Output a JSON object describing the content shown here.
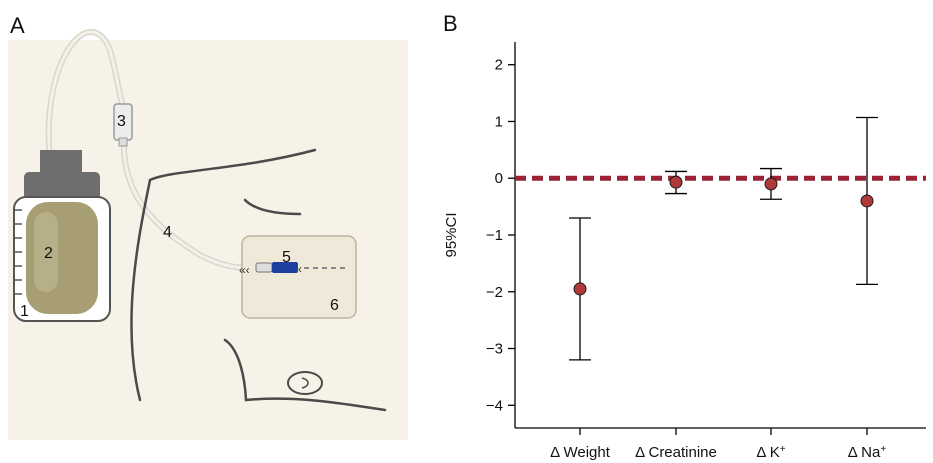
{
  "panel_a": {
    "letter": "A",
    "labels": [
      {
        "id": "1",
        "text": "1"
      },
      {
        "id": "2",
        "text": "2"
      },
      {
        "id": "3",
        "text": "3"
      },
      {
        "id": "4",
        "text": "4"
      },
      {
        "id": "5",
        "text": "5"
      },
      {
        "id": "6",
        "text": "6"
      }
    ]
  },
  "chart_data": {
    "panel_letter": "B",
    "type": "scatter",
    "subtype": "point-with-error-bars",
    "ylabel": "95%CI",
    "ylim": [
      -4.4,
      2.4
    ],
    "yticks": [
      -4,
      -3,
      -2,
      -1,
      0,
      1,
      2
    ],
    "ytick_labels": [
      "−4",
      "−3",
      "−2",
      "−1",
      "0",
      "1",
      "2"
    ],
    "categories": [
      {
        "prefix": "Δ",
        "name": "Weight",
        "sup": ""
      },
      {
        "prefix": "Δ",
        "name": "Creatinine",
        "sup": ""
      },
      {
        "prefix": "Δ",
        "name": "K",
        "sup": "+"
      },
      {
        "prefix": "Δ",
        "name": "Na",
        "sup": "+"
      }
    ],
    "points": [
      {
        "mean": -1.95,
        "lower": -3.2,
        "upper": -0.7
      },
      {
        "mean": -0.07,
        "lower": -0.27,
        "upper": 0.12
      },
      {
        "mean": -0.1,
        "lower": -0.37,
        "upper": 0.17
      },
      {
        "mean": -0.4,
        "lower": -1.87,
        "upper": 1.07
      }
    ],
    "reference_line": {
      "y": 0,
      "style": "dashed"
    },
    "colors": {
      "point": "#b03a3a",
      "reference": "#9b2335",
      "errorbar": "#000000"
    }
  },
  "colors": {
    "device_bottle_cap": "#6e6e6e",
    "device_fluid": "#a79e74",
    "device_box": "#efe9da",
    "device_catheter": "#1d3fa0"
  }
}
